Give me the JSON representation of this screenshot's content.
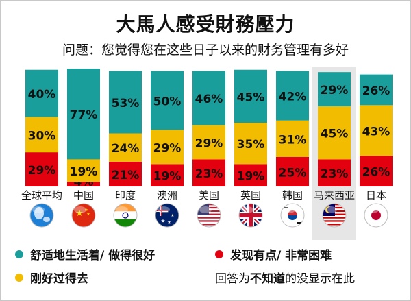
{
  "title": "大馬人感受財務壓力",
  "subtitle": "问题：您觉得您在这些日子以来的财务管理有多好",
  "colors": {
    "good": "#1a9e9c",
    "ok": "#f2bc00",
    "bad": "#e3000f",
    "highlight": "#e6e6e6"
  },
  "chart_data": {
    "type": "bar",
    "stacked": true,
    "percent": true,
    "title": "大馬人感受財務壓力",
    "subtitle": "问题：您觉得您在这些日子以来的财务管理有多好",
    "categories": [
      "全球平均",
      "中国",
      "印度",
      "澳洲",
      "美国",
      "英国",
      "韩国",
      "马来西亚",
      "日本"
    ],
    "flags": [
      "globe",
      "china",
      "india",
      "australia",
      "usa",
      "uk",
      "korea",
      "malaysia",
      "japan"
    ],
    "highlight_category": "马来西亚",
    "series": [
      {
        "name": "发现有点/ 非常困难",
        "key": "bad",
        "values": [
          29,
          4,
          21,
          19,
          23,
          19,
          25,
          23,
          26
        ]
      },
      {
        "name": "刚好过得去",
        "key": "ok",
        "values": [
          30,
          19,
          24,
          29,
          29,
          35,
          31,
          45,
          43
        ]
      },
      {
        "name": "舒适地生活着/ 做得很好",
        "key": "good",
        "values": [
          40,
          77,
          53,
          50,
          46,
          45,
          42,
          29,
          26
        ]
      }
    ]
  },
  "legend": {
    "good_label": "舒适地生活着/ 做得很好",
    "bad_label": "发现有点/ 非常困难",
    "ok_label": "刚好过得去"
  },
  "note": {
    "prefix": "回答为",
    "bold": "不知道",
    "suffix": "的没显示在此"
  }
}
